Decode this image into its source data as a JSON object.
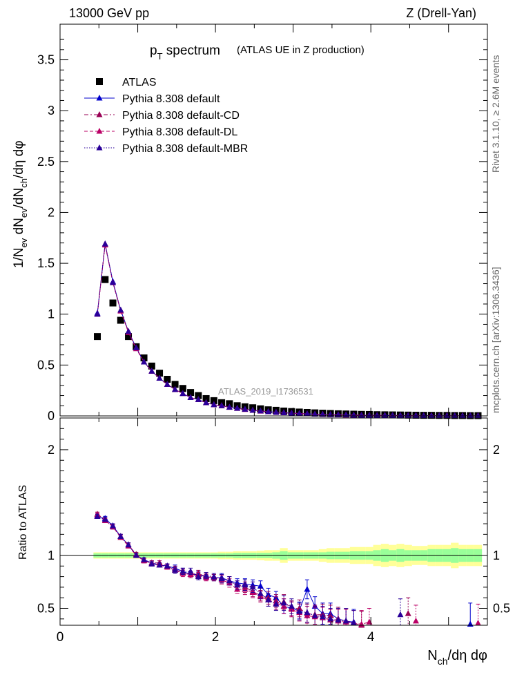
{
  "header": {
    "left": "13000 GeV pp",
    "right": "Z (Drell-Yan)"
  },
  "title": {
    "main": "p",
    "main_sub": "T",
    "main_rest": " spectrum",
    "paren": "(ATLAS UE in Z production)"
  },
  "analysis_id": "ATLAS_2019_I1736531",
  "side_labels": {
    "rivet": "Rivet 3.1.10, ≥ 2.6M events",
    "mcplots": "mcplots.cern.ch [arXiv:1306.3436]"
  },
  "colors": {
    "data": "#000000",
    "default": "#0000cc",
    "cd": "#990055",
    "dl": "#bb0066",
    "mbr": "#2a0099",
    "band_outer": "#ffff99",
    "band_inner": "#99ff99"
  },
  "chart_data": [
    {
      "type": "scatter",
      "panel": "main",
      "ylabel": "1/N_ev dN_ev/dN_ch/dη dφ",
      "xlim": [
        0,
        5.5
      ],
      "ylim": [
        0,
        3.85
      ],
      "yticks": [
        "0",
        "0.5",
        "1",
        "1.5",
        "2",
        "2.5",
        "3",
        "3.5"
      ],
      "ytick_values": [
        0,
        0.5,
        1,
        1.5,
        2,
        2.5,
        3,
        3.5
      ],
      "x": [
        0.48,
        0.58,
        0.68,
        0.78,
        0.88,
        0.98,
        1.08,
        1.18,
        1.28,
        1.38,
        1.48,
        1.58,
        1.68,
        1.78,
        1.88,
        1.98,
        2.08,
        2.18,
        2.28,
        2.38,
        2.48,
        2.58,
        2.68,
        2.78,
        2.88,
        2.98,
        3.08,
        3.18,
        3.28,
        3.38,
        3.48,
        3.58,
        3.68,
        3.78,
        3.88,
        3.98,
        4.08,
        4.18,
        4.28,
        4.38,
        4.48,
        4.58,
        4.68,
        4.78,
        4.88,
        4.98,
        5.08,
        5.18,
        5.28,
        5.38
      ],
      "series": [
        {
          "name": "ATLAS",
          "marker": "square",
          "values": [
            0.78,
            1.34,
            1.11,
            0.94,
            0.78,
            0.68,
            0.57,
            0.49,
            0.42,
            0.36,
            0.31,
            0.27,
            0.23,
            0.2,
            0.17,
            0.15,
            0.13,
            0.12,
            0.1,
            0.09,
            0.08,
            0.07,
            0.06,
            0.055,
            0.048,
            0.043,
            0.038,
            0.034,
            0.03,
            0.027,
            0.024,
            0.021,
            0.019,
            0.017,
            0.015,
            0.014,
            0.012,
            0.011,
            0.01,
            0.009,
            0.008,
            0.007,
            0.006,
            0.006,
            0.005,
            0.005,
            0.004,
            0.004,
            0.003,
            0.003
          ]
        },
        {
          "name": "Pythia 8.308 default",
          "marker": "triangle",
          "line": "solid",
          "values": [
            1.01,
            1.69,
            1.32,
            1.04,
            0.83,
            0.67,
            0.53,
            0.44,
            0.37,
            0.31,
            0.26,
            0.22,
            0.18,
            0.16,
            0.13,
            0.11,
            0.1,
            0.085,
            0.075,
            0.065,
            0.055,
            0.048,
            0.042,
            0.036,
            0.031,
            0.027,
            0.023,
            0.02,
            0.017,
            0.015,
            0.013,
            0.011,
            0.01,
            0.008,
            0.007,
            0.006,
            0.005,
            0.005,
            0.004,
            0.004,
            0.003,
            0.003,
            0.002,
            0.002,
            0.002,
            0.002,
            0.001,
            0.001,
            0.001,
            0.001
          ]
        },
        {
          "name": "Pythia 8.308 default-CD",
          "marker": "triangle",
          "line": "dashdot",
          "values": [
            1.0,
            1.69,
            1.31,
            1.04,
            0.83,
            0.67,
            0.53,
            0.44,
            0.37,
            0.31,
            0.26,
            0.22,
            0.18,
            0.16,
            0.13,
            0.11,
            0.1,
            0.085,
            0.074,
            0.064,
            0.055,
            0.048,
            0.041,
            0.036,
            0.031,
            0.027,
            0.023,
            0.02,
            0.017,
            0.015,
            0.013,
            0.011,
            0.009,
            0.008,
            0.007,
            0.006,
            0.005,
            0.005,
            0.004,
            0.004,
            0.003,
            0.003,
            0.002,
            0.002,
            0.002,
            0.002,
            0.001,
            0.001,
            0.001,
            0.001
          ]
        },
        {
          "name": "Pythia 8.308 default-DL",
          "marker": "triangle",
          "line": "dashed",
          "values": [
            1.0,
            1.68,
            1.31,
            1.03,
            0.82,
            0.66,
            0.53,
            0.44,
            0.37,
            0.31,
            0.26,
            0.22,
            0.18,
            0.16,
            0.13,
            0.11,
            0.1,
            0.084,
            0.074,
            0.064,
            0.055,
            0.047,
            0.041,
            0.036,
            0.031,
            0.027,
            0.023,
            0.02,
            0.017,
            0.015,
            0.013,
            0.011,
            0.009,
            0.008,
            0.007,
            0.006,
            0.005,
            0.005,
            0.004,
            0.004,
            0.003,
            0.003,
            0.002,
            0.002,
            0.002,
            0.002,
            0.001,
            0.001,
            0.001,
            0.001
          ]
        },
        {
          "name": "Pythia 8.308 default-MBR",
          "marker": "triangle",
          "line": "dotted",
          "values": [
            1.0,
            1.69,
            1.31,
            1.04,
            0.83,
            0.67,
            0.53,
            0.44,
            0.37,
            0.31,
            0.26,
            0.22,
            0.18,
            0.16,
            0.13,
            0.11,
            0.1,
            0.085,
            0.075,
            0.065,
            0.055,
            0.048,
            0.042,
            0.036,
            0.031,
            0.027,
            0.023,
            0.02,
            0.017,
            0.015,
            0.013,
            0.011,
            0.01,
            0.008,
            0.007,
            0.006,
            0.005,
            0.005,
            0.004,
            0.004,
            0.003,
            0.003,
            0.002,
            0.002,
            0.002,
            0.002,
            0.001,
            0.001,
            0.001,
            0.001
          ]
        }
      ]
    },
    {
      "type": "scatter",
      "panel": "ratio",
      "ylabel": "Ratio to ATLAS",
      "xlabel": "N_ch/dη dφ",
      "xlim": [
        0,
        5.5
      ],
      "ylim": [
        0.34,
        2.3
      ],
      "yticks": [
        "0.5",
        "1",
        "2"
      ],
      "ytick_values": [
        0.5,
        1,
        2
      ],
      "xticks": [
        "0",
        "2",
        "4"
      ],
      "xtick_values": [
        0,
        2,
        4
      ],
      "band_x": [
        0.48,
        0.58,
        0.68,
        0.78,
        0.88,
        0.98,
        1.08,
        1.18,
        1.28,
        1.38,
        1.48,
        1.58,
        1.68,
        1.78,
        1.88,
        1.98,
        2.08,
        2.18,
        2.28,
        2.38,
        2.48,
        2.58,
        2.68,
        2.78,
        2.88,
        2.98,
        3.08,
        3.18,
        3.28,
        3.38,
        3.48,
        3.58,
        3.68,
        3.78,
        3.88,
        3.98,
        4.08,
        4.18,
        4.28,
        4.38,
        4.48,
        4.58,
        4.68,
        4.78,
        4.88,
        4.98,
        5.08,
        5.18,
        5.28,
        5.38
      ],
      "band_inner": [
        0.02,
        0.02,
        0.02,
        0.02,
        0.02,
        0.02,
        0.02,
        0.02,
        0.02,
        0.02,
        0.02,
        0.02,
        0.02,
        0.02,
        0.02,
        0.02,
        0.02,
        0.02,
        0.025,
        0.025,
        0.025,
        0.025,
        0.025,
        0.03,
        0.04,
        0.03,
        0.03,
        0.03,
        0.03,
        0.03,
        0.035,
        0.035,
        0.035,
        0.04,
        0.04,
        0.04,
        0.05,
        0.06,
        0.05,
        0.06,
        0.05,
        0.05,
        0.05,
        0.06,
        0.06,
        0.06,
        0.07,
        0.06,
        0.06,
        0.06
      ],
      "band_outer": [
        0.03,
        0.03,
        0.03,
        0.03,
        0.03,
        0.03,
        0.03,
        0.03,
        0.03,
        0.03,
        0.03,
        0.03,
        0.03,
        0.03,
        0.03,
        0.03,
        0.035,
        0.035,
        0.04,
        0.04,
        0.04,
        0.045,
        0.05,
        0.05,
        0.07,
        0.05,
        0.05,
        0.05,
        0.05,
        0.06,
        0.07,
        0.07,
        0.07,
        0.08,
        0.08,
        0.08,
        0.1,
        0.11,
        0.1,
        0.11,
        0.1,
        0.09,
        0.09,
        0.1,
        0.1,
        0.1,
        0.12,
        0.1,
        0.1,
        0.1
      ],
      "series": [
        {
          "name": "Pythia 8.308 default",
          "x": [
            0.48,
            0.58,
            0.68,
            0.78,
            0.88,
            0.98,
            1.08,
            1.18,
            1.28,
            1.38,
            1.48,
            1.58,
            1.68,
            1.78,
            1.88,
            1.98,
            2.08,
            2.18,
            2.28,
            2.38,
            2.48,
            2.58,
            2.68,
            2.78,
            2.88,
            2.98,
            3.08,
            3.18,
            3.28,
            3.38,
            3.48,
            3.58,
            3.68,
            3.78,
            5.28
          ],
          "values": [
            1.37,
            1.35,
            1.28,
            1.18,
            1.1,
            1.0,
            0.96,
            0.93,
            0.91,
            0.9,
            0.88,
            0.85,
            0.82,
            0.82,
            0.8,
            0.79,
            0.79,
            0.76,
            0.74,
            0.73,
            0.72,
            0.71,
            0.63,
            0.6,
            0.52,
            0.5,
            0.48,
            0.68,
            0.52,
            0.45,
            0.45,
            0.4,
            0.38,
            0.37,
            0.35
          ],
          "errors": [
            0.02,
            0.02,
            0.02,
            0.02,
            0.02,
            0.02,
            0.02,
            0.02,
            0.02,
            0.02,
            0.03,
            0.03,
            0.03,
            0.03,
            0.03,
            0.03,
            0.04,
            0.04,
            0.04,
            0.05,
            0.05,
            0.05,
            0.06,
            0.06,
            0.07,
            0.07,
            0.08,
            0.09,
            0.09,
            0.1,
            0.1,
            0.11,
            0.12,
            0.12,
            0.2
          ]
        },
        {
          "name": "Pythia 8.308 default-CD",
          "x": [
            0.48,
            0.58,
            0.68,
            0.78,
            0.88,
            0.98,
            1.08,
            1.18,
            1.28,
            1.38,
            1.48,
            1.58,
            1.68,
            1.78,
            1.88,
            1.98,
            2.08,
            2.18,
            2.28,
            2.38,
            2.48,
            2.58,
            2.68,
            2.78,
            2.88,
            2.98,
            3.08,
            3.18,
            3.28,
            3.38,
            3.48,
            3.58,
            3.68,
            3.78,
            3.88,
            4.48
          ],
          "values": [
            1.39,
            1.34,
            1.27,
            1.18,
            1.1,
            1.01,
            0.95,
            0.93,
            0.93,
            0.9,
            0.87,
            0.84,
            0.82,
            0.83,
            0.8,
            0.79,
            0.78,
            0.76,
            0.72,
            0.7,
            0.66,
            0.62,
            0.6,
            0.57,
            0.56,
            0.5,
            0.5,
            0.45,
            0.44,
            0.44,
            0.43,
            0.4,
            0.38,
            0.36,
            0.34,
            0.45
          ],
          "errors": [
            0.02,
            0.02,
            0.02,
            0.02,
            0.02,
            0.02,
            0.02,
            0.02,
            0.02,
            0.02,
            0.03,
            0.03,
            0.03,
            0.03,
            0.03,
            0.03,
            0.04,
            0.04,
            0.04,
            0.05,
            0.05,
            0.05,
            0.06,
            0.06,
            0.07,
            0.07,
            0.08,
            0.09,
            0.09,
            0.1,
            0.1,
            0.11,
            0.12,
            0.12,
            0.13,
            0.15
          ]
        },
        {
          "name": "Pythia 8.308 default-DL",
          "x": [
            0.48,
            0.58,
            0.68,
            0.78,
            0.88,
            0.98,
            1.08,
            1.18,
            1.28,
            1.38,
            1.48,
            1.58,
            1.68,
            1.78,
            1.88,
            1.98,
            2.08,
            2.18,
            2.28,
            2.38,
            2.48,
            2.58,
            2.68,
            2.78,
            2.88,
            2.98,
            3.08,
            3.18,
            3.28,
            3.38,
            3.48,
            3.58,
            3.68,
            3.78,
            3.88,
            3.98,
            4.58,
            5.38
          ],
          "values": [
            1.38,
            1.33,
            1.27,
            1.17,
            1.09,
            1.0,
            0.95,
            0.92,
            0.91,
            0.89,
            0.86,
            0.83,
            0.82,
            0.81,
            0.79,
            0.8,
            0.77,
            0.74,
            0.68,
            0.68,
            0.65,
            0.61,
            0.58,
            0.55,
            0.52,
            0.49,
            0.46,
            0.43,
            0.42,
            0.41,
            0.39,
            0.38,
            0.37,
            0.36,
            0.35,
            0.37,
            0.38,
            0.36
          ],
          "errors": [
            0.02,
            0.02,
            0.02,
            0.02,
            0.02,
            0.02,
            0.02,
            0.02,
            0.02,
            0.02,
            0.03,
            0.03,
            0.03,
            0.03,
            0.03,
            0.03,
            0.04,
            0.04,
            0.04,
            0.05,
            0.05,
            0.05,
            0.06,
            0.06,
            0.07,
            0.07,
            0.08,
            0.09,
            0.09,
            0.1,
            0.1,
            0.11,
            0.12,
            0.12,
            0.13,
            0.13,
            0.15,
            0.18
          ]
        },
        {
          "name": "Pythia 8.308 default-MBR",
          "x": [
            0.48,
            0.58,
            0.68,
            0.78,
            0.88,
            0.98,
            1.08,
            1.18,
            1.28,
            1.38,
            1.48,
            1.58,
            1.68,
            1.78,
            1.88,
            1.98,
            2.08,
            2.18,
            2.28,
            2.38,
            2.48,
            2.58,
            2.68,
            2.78,
            2.88,
            2.98,
            3.08,
            3.18,
            3.28,
            3.38,
            3.48,
            3.58,
            3.68,
            3.78,
            4.38
          ],
          "values": [
            1.37,
            1.34,
            1.28,
            1.18,
            1.1,
            1.0,
            0.96,
            0.92,
            0.91,
            0.9,
            0.86,
            0.85,
            0.85,
            0.8,
            0.81,
            0.8,
            0.78,
            0.76,
            0.72,
            0.72,
            0.7,
            0.64,
            0.58,
            0.54,
            0.55,
            0.52,
            0.47,
            0.46,
            0.43,
            0.42,
            0.4,
            0.39,
            0.38,
            0.36,
            0.44
          ],
          "errors": [
            0.02,
            0.02,
            0.02,
            0.02,
            0.02,
            0.02,
            0.02,
            0.02,
            0.02,
            0.02,
            0.03,
            0.03,
            0.03,
            0.03,
            0.03,
            0.03,
            0.04,
            0.04,
            0.04,
            0.05,
            0.05,
            0.05,
            0.06,
            0.06,
            0.07,
            0.07,
            0.08,
            0.09,
            0.09,
            0.1,
            0.1,
            0.11,
            0.12,
            0.12,
            0.15
          ]
        }
      ]
    }
  ]
}
